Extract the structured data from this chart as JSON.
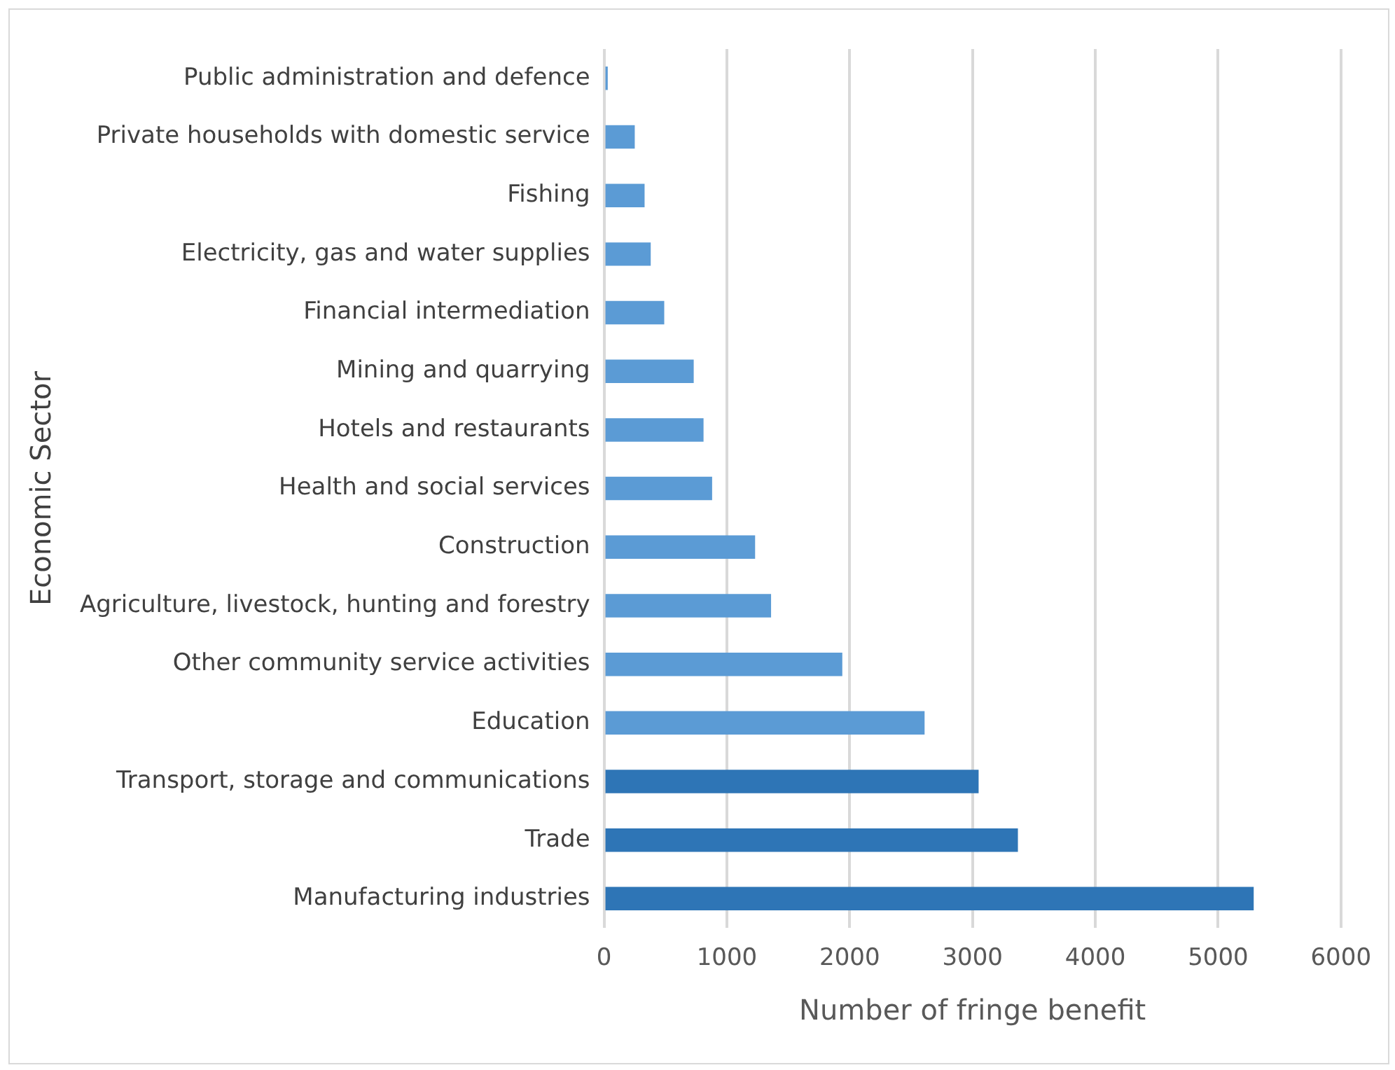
{
  "chart_data": {
    "type": "bar",
    "orientation": "horizontal",
    "xlabel": "Number of fringe benefit",
    "ylabel": "Economic Sector",
    "categories": [
      "Public administration and defence",
      "Private households with domestic service",
      "Fishing",
      "Electricity, gas and water supplies",
      "Financial intermediation",
      "Mining and quarrying",
      "Hotels and restaurants",
      "Health and social services",
      "Construction",
      "Agriculture, livestock, hunting and forestry",
      "Other community service activities",
      "Education",
      "Transport, storage and communications",
      "Trade",
      "Manufacturing industries"
    ],
    "values": [
      30,
      250,
      330,
      380,
      490,
      730,
      810,
      880,
      1230,
      1360,
      1940,
      2610,
      3050,
      3370,
      5290
    ],
    "colors": [
      "#5b9bd5",
      "#5b9bd5",
      "#5b9bd5",
      "#5b9bd5",
      "#5b9bd5",
      "#5b9bd5",
      "#5b9bd5",
      "#5b9bd5",
      "#5b9bd5",
      "#5b9bd5",
      "#5b9bd5",
      "#5b9bd5",
      "#2e75b6",
      "#2e75b6",
      "#2e75b6"
    ],
    "xlim": [
      0,
      6000
    ],
    "xticks": [
      0,
      1000,
      2000,
      3000,
      4000,
      5000,
      6000
    ],
    "grid": "x",
    "legend": false
  }
}
